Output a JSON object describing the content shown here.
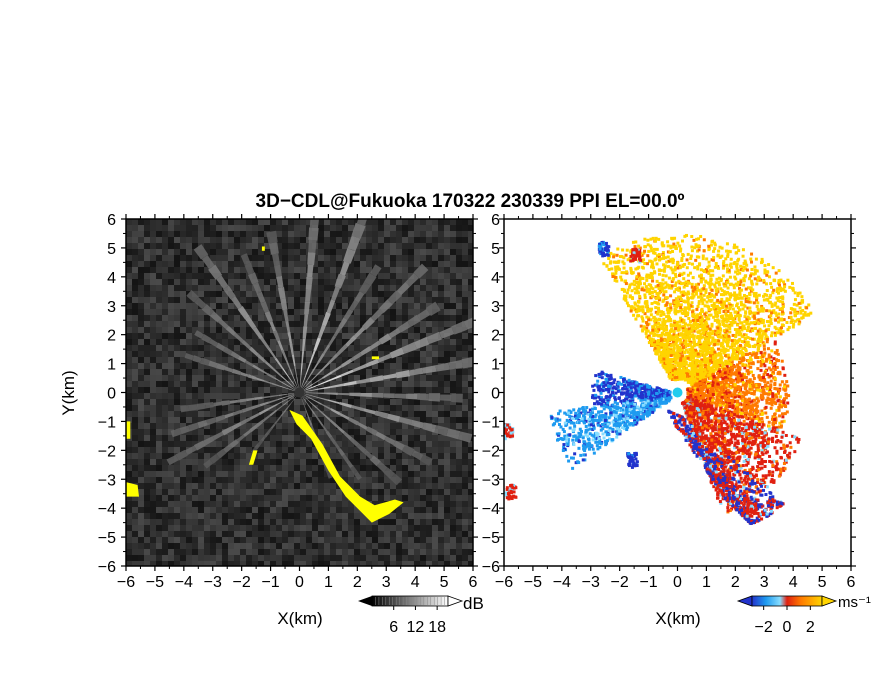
{
  "title": "3D−CDL@Fukuoka 170322 230339 PPI EL=00.0º",
  "chart_data": [
    {
      "type": "heatmap",
      "name": "reflectivity-ppi",
      "xlabel": "X(km)",
      "ylabel": "Y(km)",
      "xlim": [
        -6,
        6
      ],
      "ylim": [
        -6,
        6
      ],
      "x_ticks": [
        "−6",
        "−5",
        "−4",
        "−3",
        "−2",
        "−1",
        "0",
        "1",
        "2",
        "3",
        "4",
        "5",
        "6"
      ],
      "y_ticks": [
        "−6",
        "−5",
        "−4",
        "−3",
        "−2",
        "−1",
        "0",
        "1",
        "2",
        "3",
        "4",
        "5",
        "6"
      ],
      "colorbar": {
        "unit": "dB",
        "ticks": [
          "6",
          "12",
          "18"
        ],
        "tick_values": [
          6,
          12,
          18
        ],
        "range": [
          0,
          21
        ],
        "colors": [
          "#000000",
          "#ffffff"
        ],
        "extend": "both"
      },
      "background_color": "#2a2a2a",
      "highlight_color": "#ffff00",
      "rays": [
        {
          "az": 20,
          "len": 6.5,
          "v": 0.8
        },
        {
          "az": 32,
          "len": 5.0,
          "v": 0.55
        },
        {
          "az": 45,
          "len": 6.0,
          "v": 0.65
        },
        {
          "az": 58,
          "len": 5.5,
          "v": 0.7
        },
        {
          "az": 68,
          "len": 6.5,
          "v": 0.85
        },
        {
          "az": 80,
          "len": 6.5,
          "v": 0.75
        },
        {
          "az": 92,
          "len": 5.5,
          "v": 0.6
        },
        {
          "az": 105,
          "len": 6.0,
          "v": 0.7
        },
        {
          "az": 118,
          "len": 5.0,
          "v": 0.55
        },
        {
          "az": 132,
          "len": 4.5,
          "v": 0.5
        },
        {
          "az": 145,
          "len": 3.5,
          "v": 0.45
        },
        {
          "az": 160,
          "len": 3.0,
          "v": 0.4
        },
        {
          "az": 218,
          "len": 2.5,
          "v": 0.35
        },
        {
          "az": 232,
          "len": 4.0,
          "v": 0.45
        },
        {
          "az": 242,
          "len": 5.0,
          "v": 0.55
        },
        {
          "az": 252,
          "len": 4.5,
          "v": 0.55
        },
        {
          "az": 262,
          "len": 4.0,
          "v": 0.5
        },
        {
          "az": 288,
          "len": 4.0,
          "v": 0.6
        },
        {
          "az": 300,
          "len": 4.0,
          "v": 0.55
        },
        {
          "az": 312,
          "len": 5.0,
          "v": 0.6
        },
        {
          "az": 325,
          "len": 6.0,
          "v": 0.7
        },
        {
          "az": 338,
          "len": 5.0,
          "v": 0.55
        },
        {
          "az": 350,
          "len": 5.5,
          "v": 0.6
        },
        {
          "az": 5,
          "len": 6.0,
          "v": 0.75
        }
      ],
      "highlight_regions": [
        {
          "name": "left-edge-echo-upper",
          "points": [
            [
              -6,
              -1.0
            ],
            [
              -5.85,
              -1.0
            ],
            [
              -5.85,
              -1.6
            ],
            [
              -6,
              -1.6
            ]
          ]
        },
        {
          "name": "left-edge-echo-lower",
          "points": [
            [
              -6,
              -3.1
            ],
            [
              -5.6,
              -3.2
            ],
            [
              -5.55,
              -3.6
            ],
            [
              -6,
              -3.6
            ]
          ]
        },
        {
          "name": "ridge-echo",
          "points": [
            [
              -0.35,
              -0.6
            ],
            [
              0.1,
              -0.8
            ],
            [
              0.8,
              -1.8
            ],
            [
              1.4,
              -2.9
            ],
            [
              2.1,
              -3.6
            ],
            [
              2.6,
              -3.9
            ],
            [
              3.3,
              -3.7
            ],
            [
              3.6,
              -3.8
            ],
            [
              3.1,
              -4.2
            ],
            [
              2.5,
              -4.5
            ],
            [
              2.0,
              -4.0
            ],
            [
              1.6,
              -3.6
            ],
            [
              1.0,
              -2.7
            ],
            [
              0.4,
              -1.6
            ],
            [
              -0.1,
              -1.1
            ]
          ]
        },
        {
          "name": "small-echo-a",
          "points": [
            [
              -1.6,
              -2.0
            ],
            [
              -1.45,
              -2.0
            ],
            [
              -1.6,
              -2.5
            ],
            [
              -1.75,
              -2.5
            ]
          ]
        },
        {
          "name": "small-echo-b",
          "points": [
            [
              2.5,
              1.15
            ],
            [
              2.75,
              1.15
            ],
            [
              2.75,
              1.25
            ],
            [
              2.5,
              1.25
            ]
          ]
        },
        {
          "name": "small-echo-c",
          "points": [
            [
              -1.3,
              4.9
            ],
            [
              -1.2,
              4.9
            ],
            [
              -1.2,
              5.05
            ],
            [
              -1.3,
              5.05
            ]
          ]
        }
      ]
    },
    {
      "type": "heatmap",
      "name": "doppler-velocity-ppi",
      "xlabel": "X(km)",
      "ylabel": "",
      "xlim": [
        -6,
        6
      ],
      "ylim": [
        -6,
        6
      ],
      "x_ticks": [
        "−6",
        "−5",
        "−4",
        "−3",
        "−2",
        "−1",
        "0",
        "1",
        "2",
        "3",
        "4",
        "5",
        "6"
      ],
      "y_ticks": [
        "−6",
        "−5",
        "−4",
        "−3",
        "−2",
        "−1",
        "0",
        "1",
        "2",
        "3",
        "4",
        "5",
        "6"
      ],
      "colorbar": {
        "unit": "ms⁻¹",
        "ticks": [
          "−2",
          "0",
          "2"
        ],
        "tick_values": [
          -2,
          0,
          2
        ],
        "range": [
          -3,
          3
        ],
        "colors": [
          "#2233cc",
          "#1e9bf0",
          "#88ddff",
          "#e02010",
          "#ff7a00",
          "#ffd400"
        ],
        "extend": "both"
      },
      "velocity_sectors": [
        {
          "name": "approaching-jet",
          "az_from": 235,
          "az_to": 262,
          "r_from": 0.3,
          "r_to": 4.5,
          "v": -1.5
        },
        {
          "name": "approaching-edge",
          "az_from": 262,
          "az_to": 286,
          "r_from": 0.3,
          "r_to": 3.0,
          "v": -2.3
        },
        {
          "name": "north-east-sector",
          "az_from": 330,
          "az_to": 420,
          "r_from": 0.5,
          "r_to": 5.5,
          "v": 2.5
        },
        {
          "name": "east-sector",
          "az_from": 60,
          "az_to": 110,
          "r_from": 0.3,
          "r_to": 3.8,
          "v": 1.5
        },
        {
          "name": "south-east-sector",
          "az_from": 110,
          "az_to": 160,
          "r_from": 0.3,
          "r_to": 4.5,
          "v": 0.6
        }
      ],
      "velocity_clusters": [
        {
          "name": "left-edge-echo-upper",
          "x": -5.9,
          "y": -1.3,
          "v": 0.2
        },
        {
          "name": "left-edge-echo-lower",
          "x": -5.8,
          "y": -3.4,
          "v": 0.4
        },
        {
          "name": "ridge-echo",
          "x": 2.5,
          "y": -4.0,
          "v": 0.3
        },
        {
          "name": "small-echo-a",
          "x": -1.6,
          "y": -2.3,
          "v": -2.5
        },
        {
          "name": "small-echo-b",
          "x": -2.6,
          "y": 5.0,
          "v": -2.2
        },
        {
          "name": "small-echo-c",
          "x": -1.5,
          "y": 4.8,
          "v": 0.4
        }
      ],
      "center_marker_color": "#22ccee"
    }
  ]
}
